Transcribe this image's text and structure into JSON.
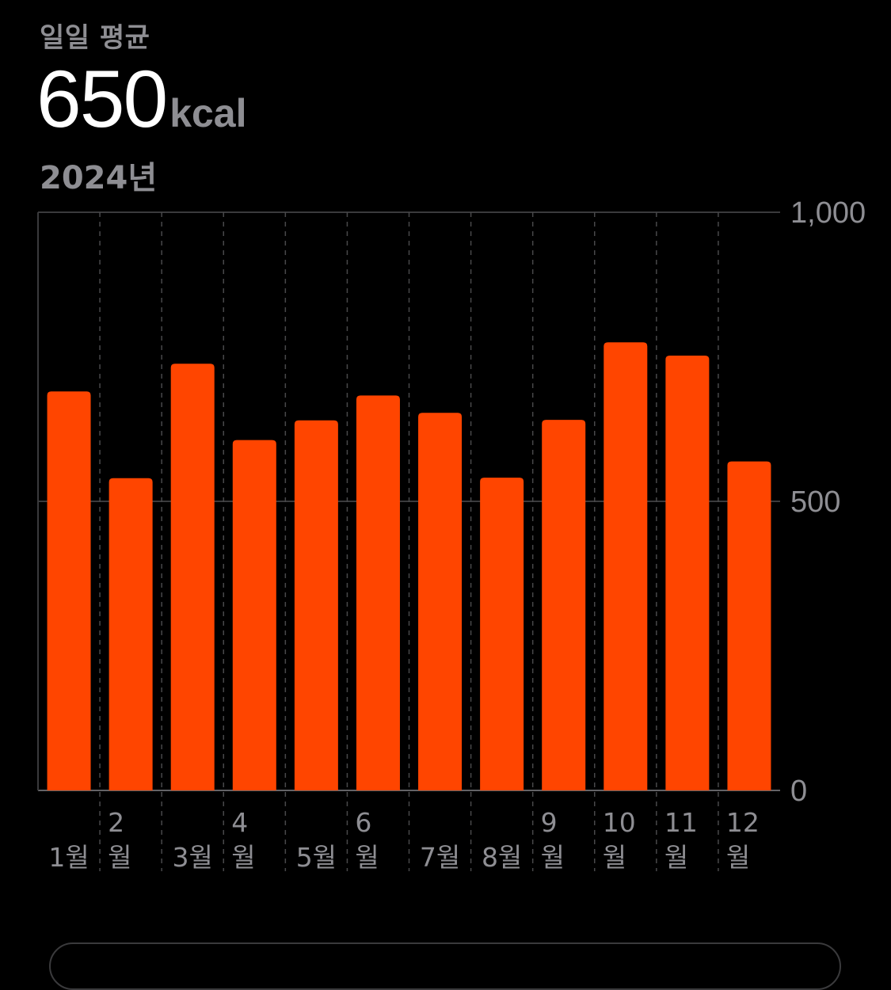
{
  "header": {
    "label": "일일 평균",
    "value": "650",
    "unit": "kcal",
    "period": "2024년"
  },
  "chart_data": {
    "type": "bar",
    "categories": [
      "1월",
      "2월",
      "3월",
      "4월",
      "5월",
      "6월",
      "7월",
      "8월",
      "9월",
      "10월",
      "11월",
      "12월"
    ],
    "category_display": [
      [
        "1월"
      ],
      [
        "2",
        "월"
      ],
      [
        "3월"
      ],
      [
        "4",
        "월"
      ],
      [
        "5월"
      ],
      [
        "6",
        "월"
      ],
      [
        "7월"
      ],
      [
        "8월"
      ],
      [
        "9",
        "월"
      ],
      [
        "10",
        "월"
      ],
      [
        "11",
        "월"
      ],
      [
        "12",
        "월"
      ]
    ],
    "values": [
      690,
      540,
      738,
      606,
      640,
      683,
      653,
      541,
      641,
      775,
      752,
      569
    ],
    "ylim": [
      0,
      1000
    ],
    "yticks": [
      0,
      500,
      1000
    ],
    "ytick_labels": [
      "0",
      "500",
      "1,000"
    ],
    "bar_color": "#ff4500",
    "grid_color": "#3a3a3c",
    "axis_position": "right",
    "title": "",
    "xlabel": "",
    "ylabel": ""
  }
}
